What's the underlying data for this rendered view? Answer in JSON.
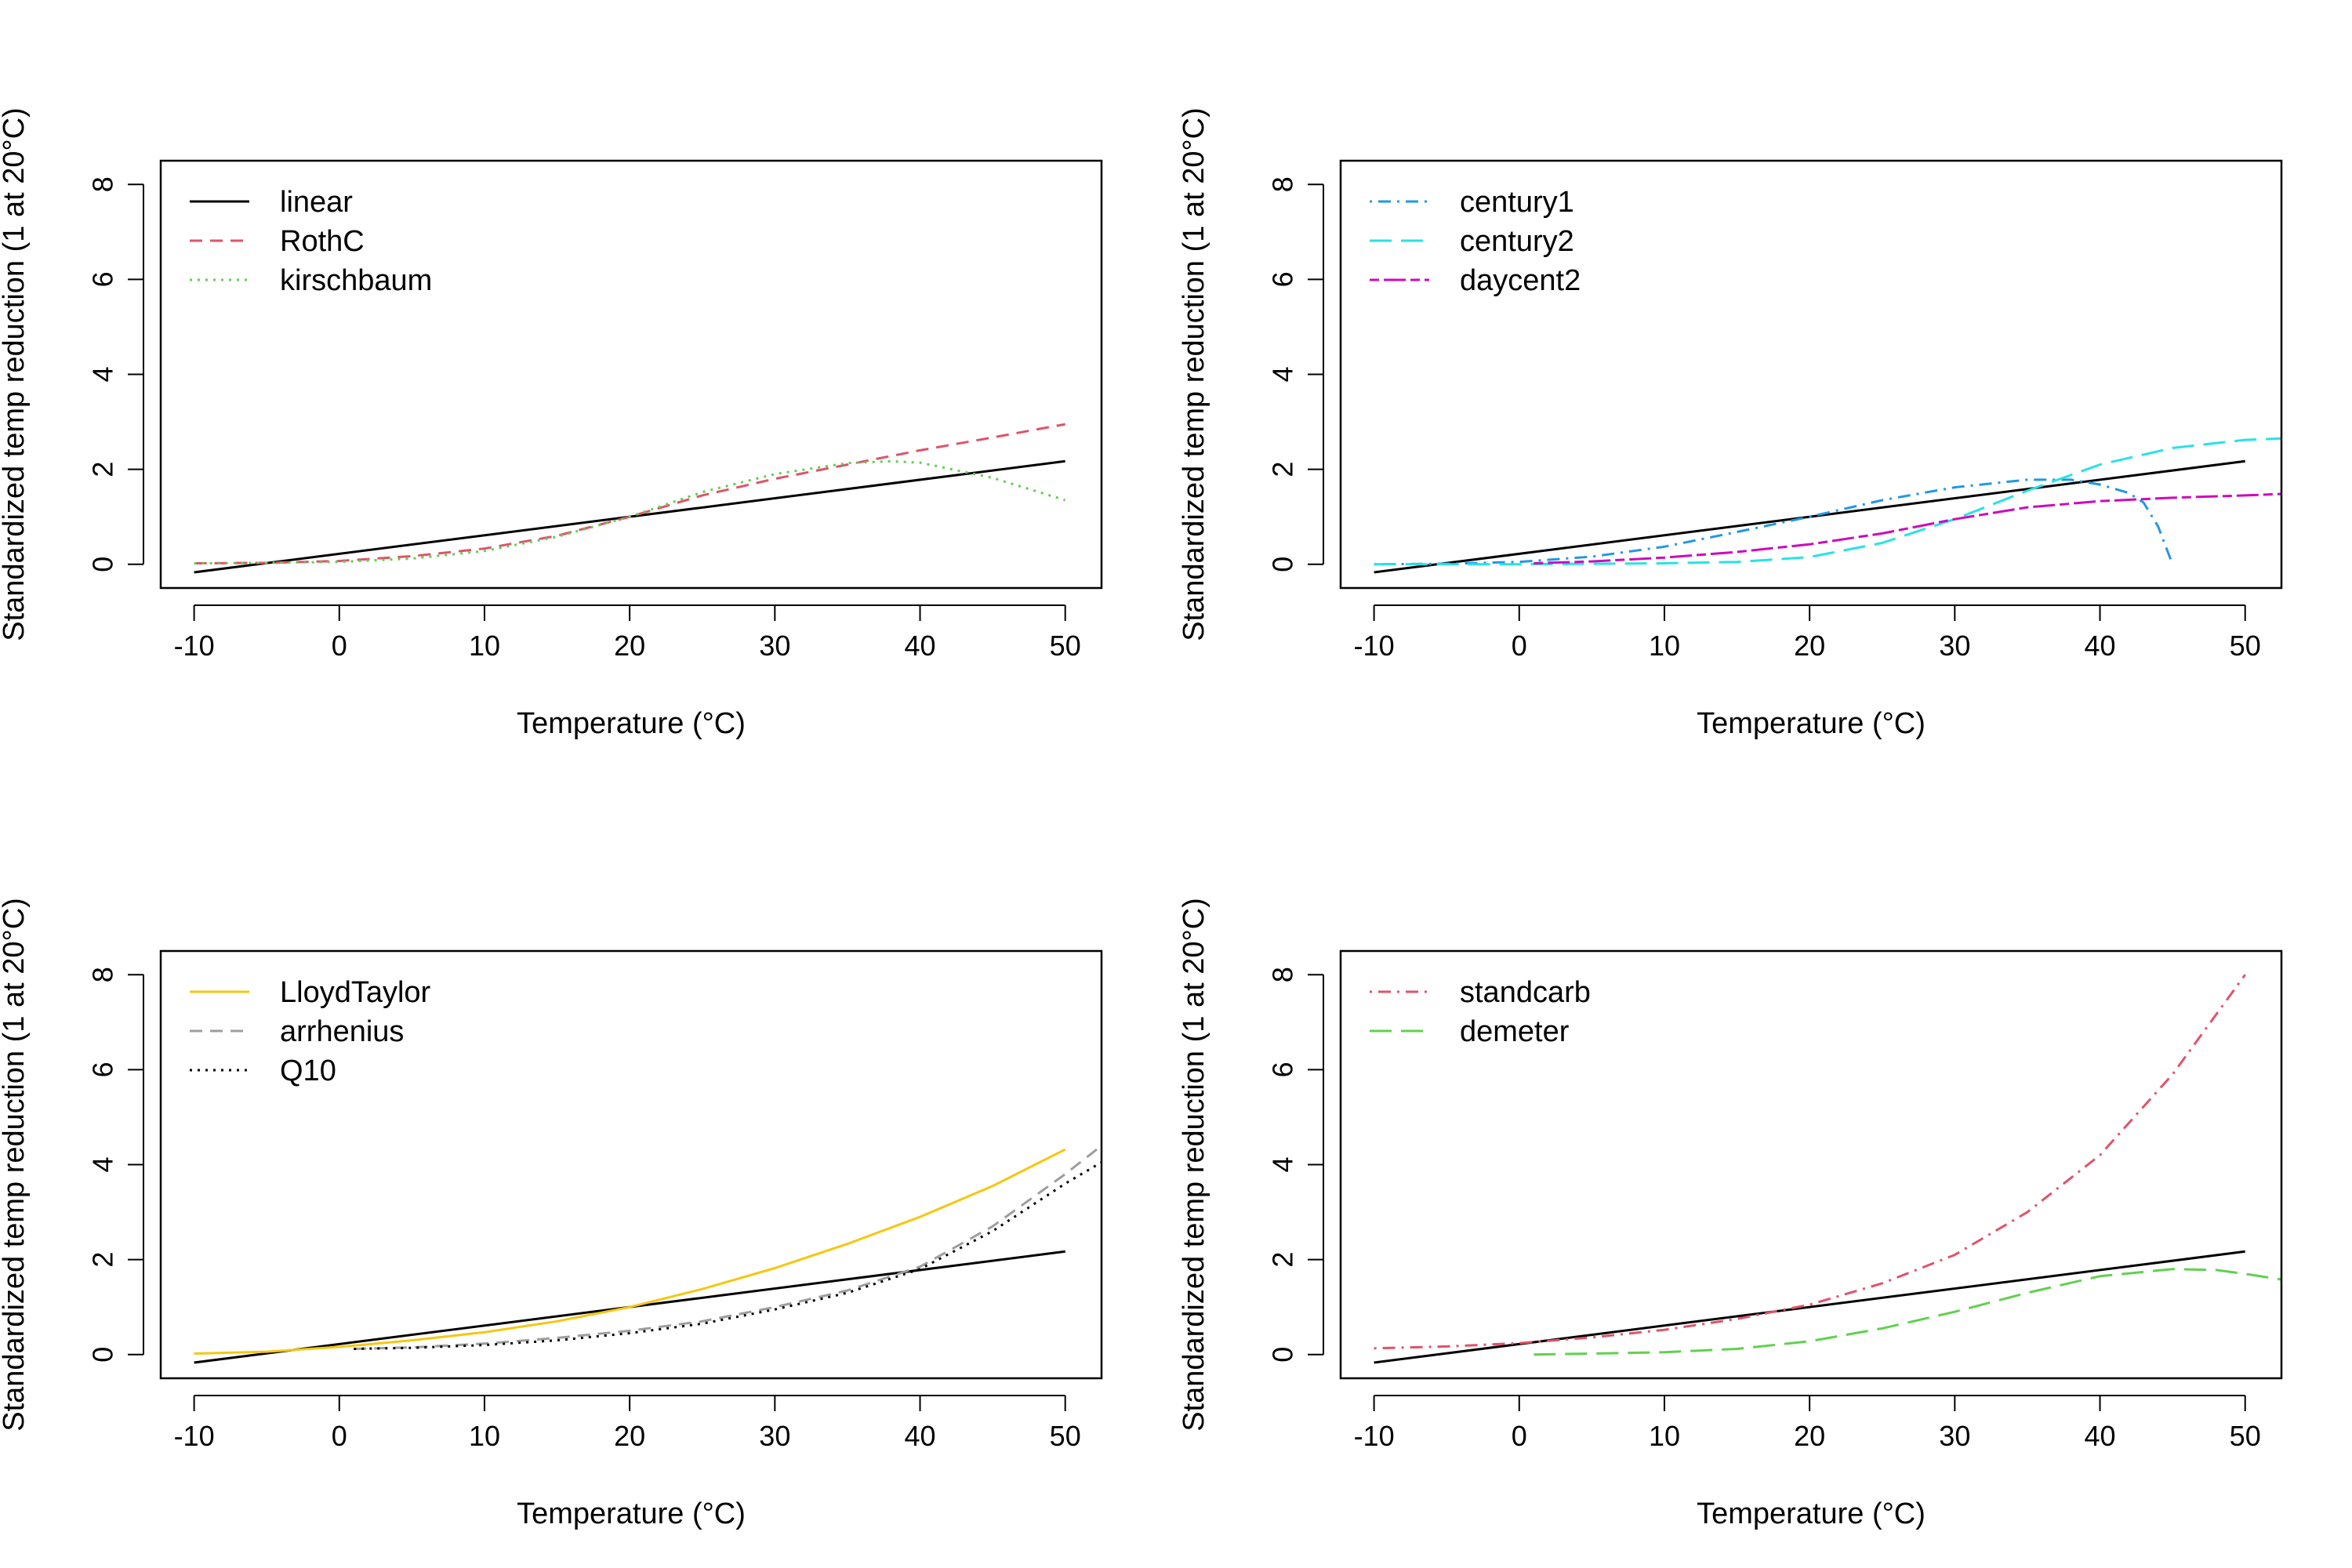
{
  "chart_data": [
    {
      "type": "line",
      "xlabel": "Temperature (°C)",
      "ylabel": "Standardized temp reduction (1 at 20°C)",
      "xlim": [
        -12.3,
        52.5
      ],
      "ylim": [
        -0.5,
        8.5
      ],
      "xticks": [
        -10,
        0,
        10,
        20,
        30,
        40,
        50
      ],
      "yticks": [
        0,
        2,
        4,
        6,
        8
      ],
      "grid": false,
      "legend_position": "top-left",
      "series": [
        {
          "name": "linear",
          "color": "#000000",
          "dash": "solid",
          "x": [
            -10,
            50
          ],
          "y": [
            -0.17,
            2.17
          ]
        },
        {
          "name": "RothC",
          "color": "#DF536B",
          "dash": "dashed",
          "x": [
            -10,
            -5,
            0,
            5,
            10,
            15,
            20,
            25,
            30,
            35,
            40,
            45,
            50
          ],
          "y": [
            0.02,
            0.03,
            0.07,
            0.17,
            0.33,
            0.6,
            1.0,
            1.45,
            1.8,
            2.1,
            2.4,
            2.67,
            2.95
          ]
        },
        {
          "name": "kirschbaum",
          "color": "#61D04F",
          "dash": "dotted",
          "x": [
            -10,
            -5,
            0,
            5,
            10,
            15,
            20,
            25,
            30,
            35,
            38,
            40,
            45,
            50
          ],
          "y": [
            0.02,
            0.03,
            0.05,
            0.12,
            0.28,
            0.58,
            1.0,
            1.52,
            1.9,
            2.13,
            2.17,
            2.14,
            1.82,
            1.35
          ]
        }
      ]
    },
    {
      "type": "line",
      "xlabel": "Temperature (°C)",
      "ylabel": "Standardized temp reduction (1 at 20°C)",
      "xlim": [
        -12.3,
        52.5
      ],
      "ylim": [
        -0.5,
        8.5
      ],
      "xticks": [
        -10,
        0,
        10,
        20,
        30,
        40,
        50
      ],
      "yticks": [
        0,
        2,
        4,
        6,
        8
      ],
      "grid": false,
      "legend_position": "top-left",
      "series": [
        {
          "name": "linear",
          "color": "#000000",
          "dash": "solid",
          "in_legend": false,
          "x": [
            -10,
            50
          ],
          "y": [
            -0.17,
            2.17
          ]
        },
        {
          "name": "century1",
          "color": "#2297E6",
          "dash": "dotdash",
          "x": [
            -10,
            -5,
            0,
            5,
            10,
            15,
            20,
            25,
            30,
            35,
            38,
            40,
            42,
            43,
            44,
            45
          ],
          "y": [
            0.0,
            0.01,
            0.05,
            0.16,
            0.37,
            0.68,
            1.0,
            1.35,
            1.62,
            1.78,
            1.78,
            1.68,
            1.5,
            1.3,
            0.8,
            0.0
          ]
        },
        {
          "name": "century2",
          "color": "#28E2E5",
          "dash": "longdash",
          "x": [
            -10,
            0,
            10,
            15,
            20,
            25,
            30,
            35,
            40,
            45,
            50,
            52.5
          ],
          "y": [
            0.0,
            0.0,
            0.02,
            0.05,
            0.15,
            0.45,
            0.95,
            1.55,
            2.1,
            2.45,
            2.62,
            2.65
          ]
        },
        {
          "name": "daycent2",
          "color": "#CD0BBC",
          "dash": "twodash",
          "x": [
            1,
            5,
            10,
            15,
            20,
            25,
            30,
            35,
            40,
            45,
            50,
            52.5
          ],
          "y": [
            0.02,
            0.06,
            0.14,
            0.26,
            0.42,
            0.65,
            0.95,
            1.2,
            1.33,
            1.4,
            1.45,
            1.48
          ]
        }
      ]
    },
    {
      "type": "line",
      "xlabel": "Temperature (°C)",
      "ylabel": "Standardized temp reduction (1 at 20°C)",
      "xlim": [
        -12.3,
        52.5
      ],
      "ylim": [
        -0.5,
        8.5
      ],
      "xticks": [
        -10,
        0,
        10,
        20,
        30,
        40,
        50
      ],
      "yticks": [
        0,
        2,
        4,
        6,
        8
      ],
      "grid": false,
      "legend_position": "top-left",
      "series": [
        {
          "name": "linear",
          "color": "#000000",
          "dash": "solid",
          "in_legend": false,
          "x": [
            -10,
            50
          ],
          "y": [
            -0.17,
            2.17
          ]
        },
        {
          "name": "LloydTaylor",
          "color": "#F5C710",
          "dash": "solid",
          "x": [
            -10,
            -5,
            0,
            5,
            10,
            15,
            20,
            25,
            30,
            35,
            40,
            45,
            50
          ],
          "y": [
            0.02,
            0.06,
            0.16,
            0.3,
            0.47,
            0.7,
            1.0,
            1.38,
            1.82,
            2.33,
            2.9,
            3.55,
            4.32
          ]
        },
        {
          "name": "arrhenius",
          "color": "#9E9E9E",
          "dash": "dashed",
          "x": [
            1,
            5,
            10,
            15,
            20,
            25,
            30,
            35,
            40,
            45,
            50,
            52.5
          ],
          "y": [
            0.12,
            0.15,
            0.23,
            0.35,
            0.5,
            0.7,
            1.0,
            1.35,
            1.85,
            2.7,
            3.8,
            4.4
          ]
        },
        {
          "name": "Q10",
          "color": "#000000",
          "dash": "dotted",
          "x": [
            1,
            5,
            10,
            15,
            20,
            25,
            30,
            35,
            40,
            45,
            50,
            52.5
          ],
          "y": [
            0.12,
            0.14,
            0.2,
            0.3,
            0.45,
            0.65,
            0.95,
            1.3,
            1.8,
            2.6,
            3.6,
            4.05
          ]
        }
      ]
    },
    {
      "type": "line",
      "xlabel": "Temperature (°C)",
      "ylabel": "Standardized temp reduction (1 at 20°C)",
      "xlim": [
        -12.3,
        52.5
      ],
      "ylim": [
        -0.5,
        8.5
      ],
      "xticks": [
        -10,
        0,
        10,
        20,
        30,
        40,
        50
      ],
      "yticks": [
        0,
        2,
        4,
        6,
        8
      ],
      "grid": false,
      "legend_position": "top-left",
      "series": [
        {
          "name": "linear",
          "color": "#000000",
          "dash": "solid",
          "in_legend": false,
          "x": [
            -10,
            50
          ],
          "y": [
            -0.17,
            2.17
          ]
        },
        {
          "name": "standcarb",
          "color": "#DF536B",
          "dash": "dotdash",
          "x": [
            -10,
            -5,
            0,
            5,
            10,
            15,
            20,
            25,
            30,
            35,
            40,
            45,
            50
          ],
          "y": [
            0.13,
            0.17,
            0.24,
            0.36,
            0.52,
            0.75,
            1.05,
            1.5,
            2.1,
            3.0,
            4.2,
            5.9,
            8.0
          ]
        },
        {
          "name": "demeter",
          "color": "#61D04F",
          "dash": "longdash",
          "x": [
            1,
            5,
            10,
            15,
            20,
            25,
            30,
            35,
            40,
            45,
            48,
            50,
            52.5
          ],
          "y": [
            0.0,
            0.02,
            0.05,
            0.12,
            0.28,
            0.55,
            0.9,
            1.3,
            1.65,
            1.8,
            1.78,
            1.7,
            1.58
          ]
        }
      ]
    }
  ]
}
